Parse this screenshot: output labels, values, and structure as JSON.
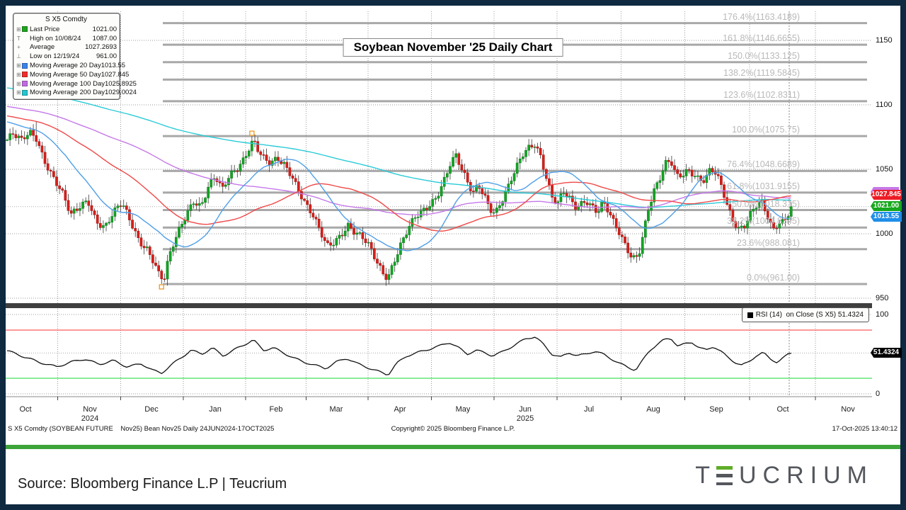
{
  "chart": {
    "title": "Soybean November '25 Daily Chart",
    "legend": {
      "header": "S X5 Comdty",
      "rows": [
        {
          "prefix": "⊞",
          "swatch": "#1fa31f",
          "label": "Last Price",
          "value": "1021.00"
        },
        {
          "prefix": "T",
          "swatch": null,
          "label": "High on 10/08/24",
          "value": "1087.00"
        },
        {
          "prefix": "+",
          "swatch": null,
          "label": "Average",
          "value": "1027.2693"
        },
        {
          "prefix": "⊥",
          "swatch": null,
          "label": "Low on 12/19/24",
          "value": "961.00"
        },
        {
          "prefix": "⊞",
          "swatch": "#3b82e8",
          "label": "Moving Average 20 Day",
          "value": "1013.55"
        },
        {
          "prefix": "⊞",
          "swatch": "#ef2c2c",
          "label": "Moving Average 50 Day",
          "value": "1027.845"
        },
        {
          "prefix": "⊞",
          "swatch": "#c06ae0",
          "label": "Moving Average 100 Day",
          "value": "1025.8925"
        },
        {
          "prefix": "⊞",
          "swatch": "#23c4cf",
          "label": "Moving Average 200 Day",
          "value": "1029.0024"
        }
      ]
    },
    "price_axis_ticks": [
      "1150",
      "1100",
      "1050",
      "1000",
      "950"
    ],
    "rsi_axis_ticks": [
      "100",
      "0"
    ],
    "price_tags": [
      {
        "text": "1027.845",
        "color": "#ed1c24"
      },
      {
        "text": "1021.00",
        "color": "#16a81c"
      },
      {
        "text": "1013.55",
        "color": "#1e8fe8"
      }
    ],
    "rsi_tag": "51.4324",
    "rsi_legend_label": "RSI (14)  on Close (S X5) ",
    "rsi_legend_value": "51.4324",
    "months": [
      "Oct",
      "Nov",
      "Dec",
      "Jan",
      "Feb",
      "Mar",
      "Apr",
      "May",
      "Jun",
      "Jul",
      "Aug",
      "Sep",
      "Oct",
      "Nov"
    ],
    "year_labels": [
      {
        "text": "2024",
        "month_index": 1
      },
      {
        "text": "2025",
        "month_index": 8
      }
    ],
    "bottom_left": "S X5 Comdty (SOYBEAN FUTURE    Nov25) Bean Nov25 Daily 24JUN2024-17OCT2025",
    "bottom_center": "Copyright© 2025 Bloomberg Finance L.P.",
    "bottom_right": "17-Oct-2025 13:40:12"
  },
  "chart_data": {
    "type": "candlestick",
    "symbol": "S X5 Comdty",
    "description": "SOYBEAN FUTURE Nov25, Bean Nov25 Daily 24JUN2024-17OCT2025",
    "title": "Soybean November '25 Daily Chart",
    "ylim": [
      950,
      1175
    ],
    "y_ticks": [
      1150,
      1100,
      1050,
      1000,
      950
    ],
    "x_categories": [
      "Oct 2024",
      "Nov 2024",
      "Dec 2024",
      "Jan 2025",
      "Feb 2025",
      "Mar 2025",
      "Apr 2025",
      "May 2025",
      "Jun 2025",
      "Jul 2025",
      "Aug 2025",
      "Sep 2025",
      "Oct 2025",
      "Nov 2025"
    ],
    "last_price": 1021.0,
    "high": {
      "date": "10/08/24",
      "value": 1087.0
    },
    "low": {
      "date": "12/19/24",
      "value": 961.0
    },
    "average": 1027.2693,
    "moving_averages": [
      {
        "period": 20,
        "value": 1013.55,
        "color": "#4f9fe8"
      },
      {
        "period": 50,
        "value": 1027.845,
        "color": "#f04848"
      },
      {
        "period": 100,
        "value": 1025.8925,
        "color": "#c678e8"
      },
      {
        "period": 200,
        "value": 1029.0024,
        "color": "#2bcbd8"
      }
    ],
    "fibonacci_levels": [
      {
        "pct": "176.4%",
        "price": 1163.4189
      },
      {
        "pct": "161.8%",
        "price": 1146.6655
      },
      {
        "pct": "150.0%",
        "price": 1133.125
      },
      {
        "pct": "138.2%",
        "price": 1119.5845
      },
      {
        "pct": "123.6%",
        "price": 1102.8311
      },
      {
        "pct": "100.0%",
        "price": 1075.75
      },
      {
        "pct": "76.4%",
        "price": 1048.6689
      },
      {
        "pct": "61.8%",
        "price": 1031.9155
      },
      {
        "pct": "50.0%",
        "price": 1018.375
      },
      {
        "pct": "38.2%",
        "price": 1004.8345
      },
      {
        "pct": "23.6%",
        "price": 988.081
      },
      {
        "pct": "0.0%",
        "price": 961.0
      }
    ],
    "price_path": [
      [
        8,
        1072
      ],
      [
        18,
        1076
      ],
      [
        30,
        1070
      ],
      [
        42,
        1078
      ],
      [
        52,
        1075
      ],
      [
        62,
        1060
      ],
      [
        75,
        1045
      ],
      [
        88,
        1030
      ],
      [
        100,
        1012
      ],
      [
        112,
        1020
      ],
      [
        124,
        1028
      ],
      [
        136,
        1012
      ],
      [
        148,
        1005
      ],
      [
        160,
        1014
      ],
      [
        172,
        1022
      ],
      [
        184,
        1010
      ],
      [
        196,
        997
      ],
      [
        208,
        990
      ],
      [
        218,
        978
      ],
      [
        226,
        965
      ],
      [
        232,
        963
      ],
      [
        238,
        978
      ],
      [
        246,
        992
      ],
      [
        254,
        1004
      ],
      [
        264,
        1018
      ],
      [
        274,
        1028
      ],
      [
        284,
        1022
      ],
      [
        294,
        1035
      ],
      [
        304,
        1042
      ],
      [
        314,
        1032
      ],
      [
        324,
        1045
      ],
      [
        334,
        1052
      ],
      [
        344,
        1060
      ],
      [
        352,
        1068
      ],
      [
        358,
        1073
      ],
      [
        366,
        1062
      ],
      [
        374,
        1055
      ],
      [
        382,
        1052
      ],
      [
        392,
        1058
      ],
      [
        402,
        1055
      ],
      [
        412,
        1048
      ],
      [
        422,
        1035
      ],
      [
        432,
        1022
      ],
      [
        442,
        1012
      ],
      [
        452,
        1000
      ],
      [
        462,
        990
      ],
      [
        472,
        995
      ],
      [
        482,
        1002
      ],
      [
        492,
        1008
      ],
      [
        502,
        1000
      ],
      [
        512,
        995
      ],
      [
        522,
        988
      ],
      [
        532,
        978
      ],
      [
        542,
        970
      ],
      [
        548,
        968
      ],
      [
        556,
        980
      ],
      [
        566,
        992
      ],
      [
        576,
        1002
      ],
      [
        586,
        1010
      ],
      [
        596,
        1015
      ],
      [
        606,
        1022
      ],
      [
        616,
        1030
      ],
      [
        626,
        1042
      ],
      [
        636,
        1055
      ],
      [
        644,
        1060
      ],
      [
        652,
        1048
      ],
      [
        660,
        1038
      ],
      [
        668,
        1030
      ],
      [
        676,
        1038
      ],
      [
        684,
        1032
      ],
      [
        692,
        1022
      ],
      [
        700,
        1018
      ],
      [
        708,
        1025
      ],
      [
        716,
        1032
      ],
      [
        724,
        1042
      ],
      [
        732,
        1052
      ],
      [
        740,
        1062
      ],
      [
        748,
        1068
      ],
      [
        756,
        1072
      ],
      [
        764,
        1062
      ],
      [
        772,
        1045
      ],
      [
        780,
        1028
      ],
      [
        788,
        1022
      ],
      [
        796,
        1030
      ],
      [
        804,
        1026
      ],
      [
        812,
        1020
      ],
      [
        820,
        1024
      ],
      [
        828,
        1028
      ],
      [
        836,
        1024
      ],
      [
        844,
        1018
      ],
      [
        852,
        1024
      ],
      [
        860,
        1015
      ],
      [
        868,
        1005
      ],
      [
        876,
        998
      ],
      [
        884,
        990
      ],
      [
        892,
        984
      ],
      [
        898,
        983
      ],
      [
        904,
        990
      ],
      [
        910,
        1005
      ],
      [
        916,
        1020
      ],
      [
        924,
        1032
      ],
      [
        932,
        1040
      ],
      [
        940,
        1052
      ],
      [
        948,
        1055
      ],
      [
        956,
        1045
      ],
      [
        964,
        1048
      ],
      [
        972,
        1052
      ],
      [
        980,
        1048
      ],
      [
        988,
        1042
      ],
      [
        996,
        1040
      ],
      [
        1004,
        1048
      ],
      [
        1012,
        1044
      ],
      [
        1020,
        1035
      ],
      [
        1028,
        1022
      ],
      [
        1036,
        1012
      ],
      [
        1044,
        1006
      ],
      [
        1052,
        1008
      ],
      [
        1060,
        1015
      ],
      [
        1068,
        1020
      ],
      [
        1076,
        1022
      ],
      [
        1084,
        1012
      ],
      [
        1092,
        1002
      ],
      [
        1100,
        1010
      ],
      [
        1108,
        1012
      ],
      [
        1116,
        1021
      ]
    ],
    "rsi": {
      "label": "RSI (14) on Close (S X5)",
      "last": 51.4324,
      "ticks": [
        100,
        0
      ],
      "path": [
        [
          8,
          55
        ],
        [
          30,
          48
        ],
        [
          55,
          40
        ],
        [
          80,
          34
        ],
        [
          100,
          40
        ],
        [
          120,
          44
        ],
        [
          140,
          37
        ],
        [
          160,
          42
        ],
        [
          180,
          34
        ],
        [
          200,
          38
        ],
        [
          215,
          30
        ],
        [
          228,
          26
        ],
        [
          240,
          35
        ],
        [
          255,
          45
        ],
        [
          270,
          55
        ],
        [
          285,
          50
        ],
        [
          300,
          58
        ],
        [
          315,
          48
        ],
        [
          330,
          55
        ],
        [
          345,
          62
        ],
        [
          358,
          68
        ],
        [
          372,
          55
        ],
        [
          386,
          58
        ],
        [
          400,
          52
        ],
        [
          415,
          45
        ],
        [
          430,
          40
        ],
        [
          445,
          36
        ],
        [
          460,
          32
        ],
        [
          475,
          40
        ],
        [
          490,
          45
        ],
        [
          505,
          38
        ],
        [
          520,
          33
        ],
        [
          535,
          28
        ],
        [
          548,
          24
        ],
        [
          560,
          38
        ],
        [
          575,
          48
        ],
        [
          590,
          52
        ],
        [
          605,
          56
        ],
        [
          620,
          60
        ],
        [
          635,
          65
        ],
        [
          648,
          58
        ],
        [
          660,
          50
        ],
        [
          672,
          55
        ],
        [
          684,
          52
        ],
        [
          696,
          48
        ],
        [
          708,
          52
        ],
        [
          720,
          58
        ],
        [
          732,
          64
        ],
        [
          744,
          70
        ],
        [
          756,
          72
        ],
        [
          768,
          62
        ],
        [
          780,
          50
        ],
        [
          792,
          46
        ],
        [
          804,
          52
        ],
        [
          816,
          48
        ],
        [
          828,
          50
        ],
        [
          840,
          54
        ],
        [
          852,
          50
        ],
        [
          864,
          44
        ],
        [
          876,
          38
        ],
        [
          888,
          33
        ],
        [
          898,
          30
        ],
        [
          908,
          42
        ],
        [
          918,
          55
        ],
        [
          928,
          62
        ],
        [
          938,
          68
        ],
        [
          948,
          70
        ],
        [
          958,
          60
        ],
        [
          968,
          63
        ],
        [
          978,
          65
        ],
        [
          988,
          58
        ],
        [
          998,
          55
        ],
        [
          1008,
          60
        ],
        [
          1018,
          54
        ],
        [
          1028,
          46
        ],
        [
          1038,
          40
        ],
        [
          1048,
          36
        ],
        [
          1058,
          40
        ],
        [
          1068,
          48
        ],
        [
          1078,
          52
        ],
        [
          1088,
          44
        ],
        [
          1098,
          40
        ],
        [
          1108,
          46
        ],
        [
          1116,
          51.43
        ]
      ]
    }
  },
  "footer": {
    "source_text": "Source: Bloomberg Finance L.P | Teucrium",
    "logo_text": "TEUCRIUM"
  },
  "colors": {
    "frame": "#0e2940",
    "panel_bg": "#ffffff",
    "green_bar": "#3da439",
    "up": "#13a524",
    "up_border": "#0b7a18",
    "down": "#d81f1a",
    "down_border": "#a31210",
    "wick": "#3a3a3a",
    "ma20": "#4f9fe8",
    "ma50": "#f04848",
    "ma100": "#c678e8",
    "ma200": "#2bcbd8",
    "fib_line": "#a8a8a8",
    "fib_label": "#b9b9b9",
    "grid": "#9a9a9a",
    "separator": "#3f3f3f",
    "rsi_upper_line": "#fd5c5c",
    "rsi_lower_line": "#44e05c",
    "rsi_line": "#111111",
    "marker_orange": "#f0a030",
    "logo_gray": "#54575c",
    "logo_green": "#5fad28"
  }
}
